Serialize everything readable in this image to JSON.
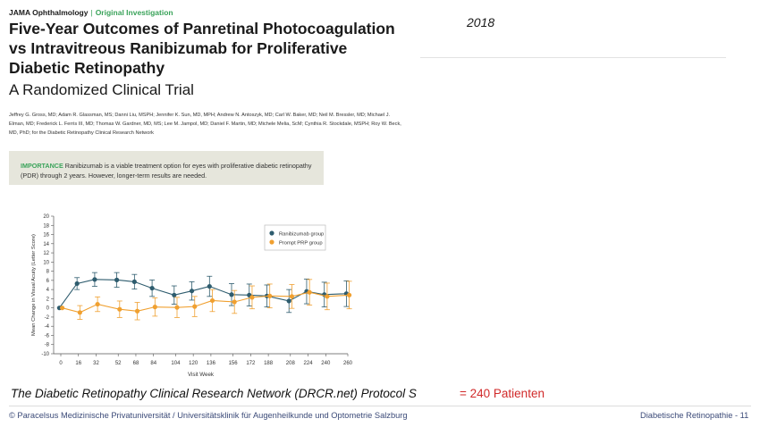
{
  "paper": {
    "journal": "JAMA Ophthalmology",
    "section": "Original Investigation",
    "title": "Five-Year Outcomes of Panretinal Photocoagulation vs Intravitreous Ranibizumab for Proliferative Diabetic Retinopathy",
    "subtitle": "A Randomized Clinical Trial",
    "authors": "Jeffrey G. Gross, MD; Adam R. Glassman, MS; Danni Liu, MSPH; Jennifer K. Sun, MD, MPH; Andrew N. Antoszyk, MD; Carl W. Baker, MD; Neil M. Bressler, MD; Michael J. Elman, MD; Frederick L. Ferris III, MD; Thomas W. Gardner, MD, MS; Lee M. Jampol, MD; Daniel F. Martin, MD; Michele Melia, ScM; Cynthia R. Stockdale, MSPH; Roy W. Beck, MD, PhD; for the Diabetic Retinopathy Clinical Research Network",
    "importance_label": "IMPORTANCE",
    "importance_text": "Ranibizumab is a viable treatment option for eyes with proliferative diabetic retinopathy (PDR) through 2 years. However, longer-term results are needed."
  },
  "year": "2018",
  "caption": "The Diabetic Retinopathy Clinical Research Network (DRCR.net) Protocol S",
  "patient_count": "= 240 Patienten",
  "footer": {
    "left": "© Paracelsus Medizinische Privatuniversität / Universitätsklinik für Augenheilkunde und Optometrie Salzburg",
    "right": "Diabetische Retinopathie - 11"
  },
  "colors": {
    "ranibizumab": "#2e5c6e",
    "prp": "#f0a030",
    "accent_green": "#3aa35a",
    "caption_red": "#d12a2a",
    "footer_blue": "#3b4a78"
  },
  "chart_data": {
    "type": "line",
    "xlabel": "Visit Week",
    "ylabel": "Mean Change in Visual Acuity (Letter Score)",
    "x": [
      0,
      16,
      32,
      52,
      68,
      84,
      104,
      120,
      136,
      156,
      172,
      188,
      208,
      224,
      240,
      260
    ],
    "xlim": [
      0,
      260
    ],
    "ylim": [
      -10,
      20
    ],
    "yticks": [
      -10,
      -8,
      -6,
      -4,
      -2,
      0,
      2,
      4,
      6,
      8,
      10,
      12,
      14,
      16,
      18,
      20
    ],
    "legend_position": "top-right",
    "grid": false,
    "series": [
      {
        "name": "Ranibizumab group",
        "color": "#2e5c6e",
        "values": [
          0,
          5.3,
          6.2,
          6.1,
          5.7,
          4.3,
          2.8,
          3.7,
          4.7,
          2.9,
          2.8,
          2.6,
          1.5,
          3.6,
          2.9,
          3.1
        ],
        "err": [
          0,
          1.3,
          1.5,
          1.6,
          1.6,
          1.8,
          2.0,
          2.0,
          2.2,
          2.4,
          2.4,
          2.4,
          2.5,
          2.7,
          2.7,
          2.8
        ]
      },
      {
        "name": "Prompt PRP group",
        "color": "#f0a030",
        "values": [
          0,
          -1.0,
          0.8,
          -0.3,
          -0.7,
          0.2,
          0.1,
          0.3,
          1.6,
          1.3,
          2.3,
          2.6,
          2.5,
          3.4,
          2.5,
          2.8
        ],
        "err": [
          0,
          1.5,
          1.6,
          1.8,
          1.9,
          2.0,
          2.2,
          2.2,
          2.4,
          2.5,
          2.5,
          2.6,
          2.6,
          2.8,
          2.9,
          3.0
        ]
      }
    ]
  }
}
